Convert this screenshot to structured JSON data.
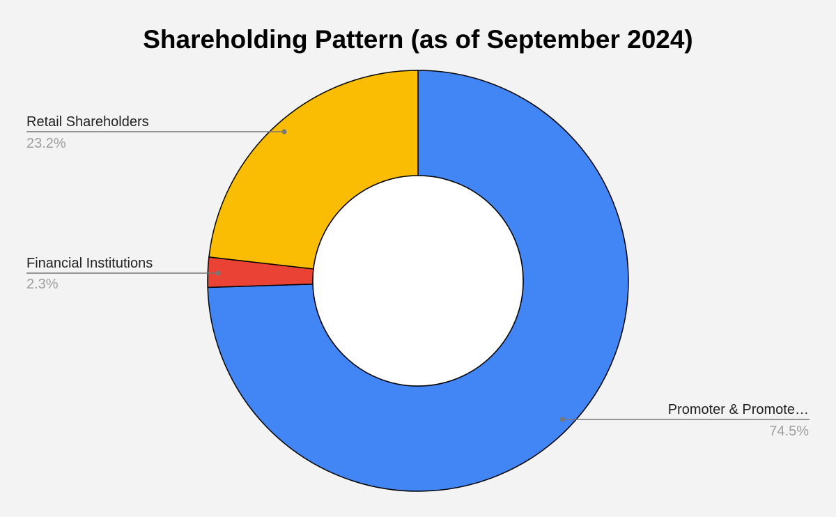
{
  "chart_data": {
    "type": "pie",
    "donut": true,
    "title": "Shareholding Pattern (as of September 2024)",
    "categories": [
      "Promoter & Promote…",
      "Financial Institutions",
      "Retail Shareholders"
    ],
    "values": [
      74.5,
      2.3,
      23.2
    ],
    "value_labels": [
      "74.5%",
      "2.3%",
      "23.2%"
    ],
    "colors": [
      "#4285f4",
      "#ea4335",
      "#fbbc04"
    ],
    "legend": "none"
  }
}
